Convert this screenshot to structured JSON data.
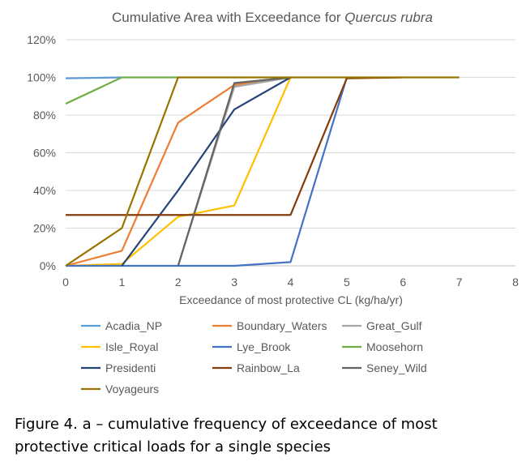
{
  "chart_data": {
    "type": "line",
    "title_prefix": "Cumulative Area with Exceedance for ",
    "title_species": "Quercus rubra",
    "xlabel": "Exceedance of most protective CL (kg/ha/yr)",
    "ylabel": "",
    "xlim": [
      0,
      8
    ],
    "ylim": [
      0,
      120
    ],
    "x_ticks": [
      "0",
      "1",
      "2",
      "3",
      "4",
      "5",
      "6",
      "7",
      "8"
    ],
    "y_ticks": [
      "0%",
      "20%",
      "40%",
      "60%",
      "80%",
      "100%",
      "120%"
    ],
    "grid": "horizontal",
    "legend_position": "bottom",
    "series": [
      {
        "name": "Acadia_NP",
        "color": "#5b9bd5",
        "x": [
          0,
          1
        ],
        "y": [
          99.5,
          100
        ]
      },
      {
        "name": "Boundary_Waters",
        "color": "#ed7d31",
        "x": [
          0,
          1,
          2,
          3,
          4
        ],
        "y": [
          0,
          8,
          76,
          96,
          100
        ]
      },
      {
        "name": "Great_Gulf",
        "color": "#a5a5a5",
        "x": [
          2,
          3,
          4
        ],
        "y": [
          0,
          95,
          100
        ]
      },
      {
        "name": "Isle_Royal",
        "color": "#ffc000",
        "x": [
          0,
          1,
          2,
          3,
          4
        ],
        "y": [
          0,
          1,
          26,
          32,
          100
        ]
      },
      {
        "name": "Lye_Brook",
        "color": "#4472c4",
        "x": [
          0,
          1,
          2,
          3,
          4,
          5
        ],
        "y": [
          0,
          0,
          0,
          0,
          2,
          100
        ]
      },
      {
        "name": "Moosehorn",
        "color": "#70ad47",
        "x": [
          0,
          1,
          2
        ],
        "y": [
          86,
          100,
          100
        ]
      },
      {
        "name": "Presidenti",
        "color": "#264478",
        "x": [
          1,
          2,
          3,
          4
        ],
        "y": [
          0,
          40,
          83,
          100
        ]
      },
      {
        "name": "Rainbow_La",
        "color": "#843c0c",
        "x": [
          0,
          1,
          2,
          3,
          4,
          5,
          6
        ],
        "y": [
          27,
          27,
          27,
          27,
          27,
          99.5,
          100
        ]
      },
      {
        "name": "Seney_Wild",
        "color": "#636363",
        "x": [
          2,
          3,
          4
        ],
        "y": [
          0,
          97,
          100
        ]
      },
      {
        "name": "Voyageurs",
        "color": "#997300",
        "x": [
          0,
          1,
          2,
          3,
          4,
          5,
          6,
          7
        ],
        "y": [
          0,
          20,
          100,
          100,
          100,
          100,
          100,
          100
        ]
      }
    ]
  },
  "caption": {
    "line1": "Figure 4. a – cumulative frequency of exceedance of most",
    "line2": "protective critical loads for a single species"
  }
}
